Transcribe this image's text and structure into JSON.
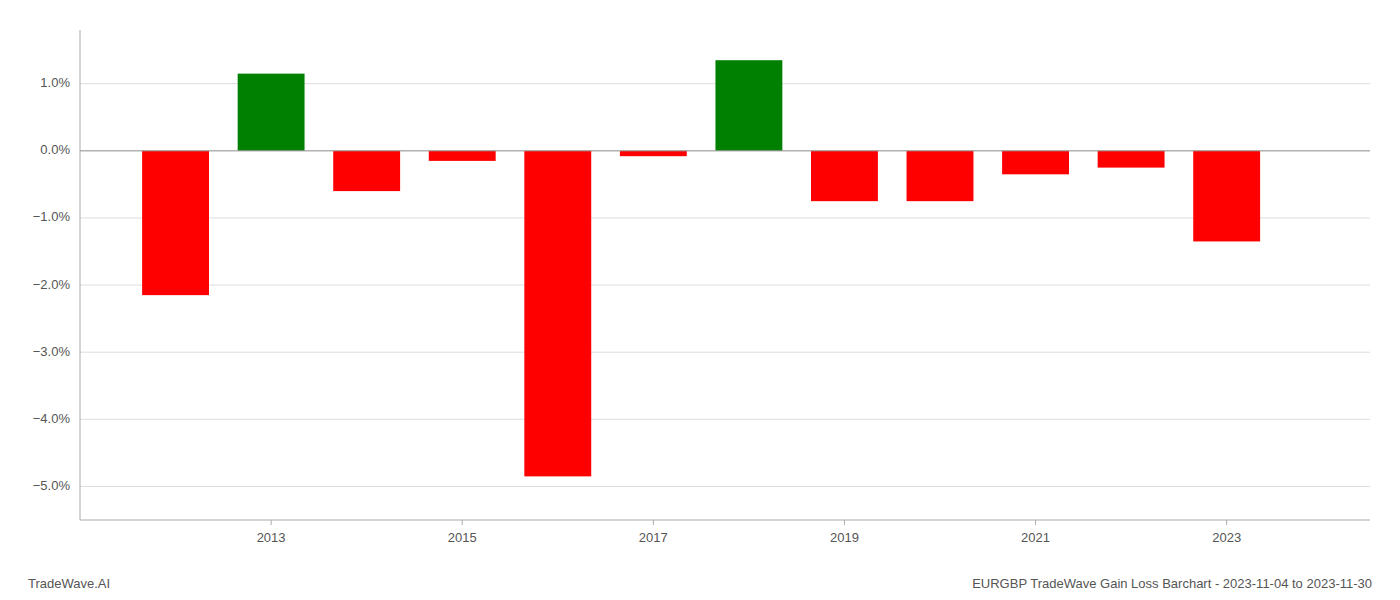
{
  "chart_data": {
    "type": "bar",
    "x": [
      2012,
      2013,
      2014,
      2015,
      2016,
      2017,
      2018,
      2019,
      2020,
      2021,
      2022,
      2023
    ],
    "values": [
      -2.15,
      1.15,
      -0.6,
      -0.15,
      -4.85,
      -0.08,
      1.35,
      -0.75,
      -0.75,
      -0.35,
      -0.25,
      -1.35
    ],
    "colors": [
      "#ff0000",
      "#008000",
      "#ff0000",
      "#ff0000",
      "#ff0000",
      "#ff0000",
      "#008000",
      "#ff0000",
      "#ff0000",
      "#ff0000",
      "#ff0000",
      "#ff0000"
    ],
    "xlim": [
      2011.0,
      2024.5
    ],
    "xticks": [
      2013,
      2015,
      2017,
      2019,
      2021,
      2023
    ],
    "ylim": [
      -5.5,
      1.8
    ],
    "yticks": [
      {
        "value": 1.0,
        "label": "1.0%"
      },
      {
        "value": 0.0,
        "label": "0.0%"
      },
      {
        "value": -1.0,
        "label": "−1.0%"
      },
      {
        "value": -2.0,
        "label": "−2.0%"
      },
      {
        "value": -3.0,
        "label": "−3.0%"
      },
      {
        "value": -4.0,
        "label": "−4.0%"
      },
      {
        "value": -5.0,
        "label": "−5.0%"
      }
    ],
    "grid": true,
    "annotations": [
      "TradeWave.AI",
      "EURGBP TradeWave Gain Loss Barchart - 2023-11-04 to 2023-11-30"
    ]
  }
}
